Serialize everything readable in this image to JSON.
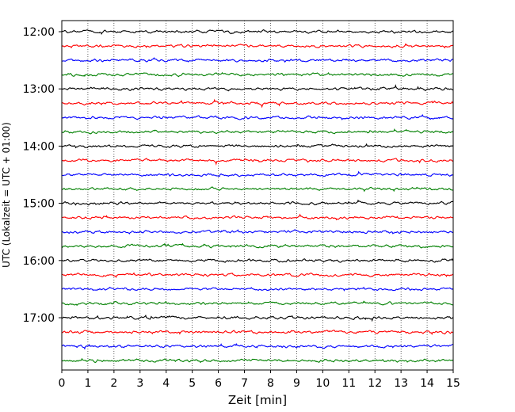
{
  "chart_data": {
    "type": "line",
    "xlabel": "Zeit  [min]",
    "ylabel": "UTC (Lokalzeit = UTC + 01:00)",
    "xlim": [
      0,
      15
    ],
    "x_ticks": [
      "0",
      "1",
      "2",
      "3",
      "4",
      "5",
      "6",
      "7",
      "8",
      "9",
      "10",
      "11",
      "12",
      "13",
      "14",
      "15"
    ],
    "y_ticks": [
      "12:00",
      "13:00",
      "14:00",
      "15:00",
      "16:00",
      "17:00"
    ],
    "grid": "vertical dotted",
    "colors": [
      "#000000",
      "#ff0000",
      "#0000ff",
      "#008000"
    ],
    "rows": [
      {
        "start": "12:00",
        "color": "#000000"
      },
      {
        "start": "12:15",
        "color": "#ff0000"
      },
      {
        "start": "12:30",
        "color": "#0000ff"
      },
      {
        "start": "12:45",
        "color": "#008000"
      },
      {
        "start": "13:00",
        "color": "#000000"
      },
      {
        "start": "13:15",
        "color": "#ff0000"
      },
      {
        "start": "13:30",
        "color": "#0000ff"
      },
      {
        "start": "13:45",
        "color": "#008000"
      },
      {
        "start": "14:00",
        "color": "#000000"
      },
      {
        "start": "14:15",
        "color": "#ff0000"
      },
      {
        "start": "14:30",
        "color": "#0000ff"
      },
      {
        "start": "14:45",
        "color": "#008000"
      },
      {
        "start": "15:00",
        "color": "#000000"
      },
      {
        "start": "15:15",
        "color": "#ff0000"
      },
      {
        "start": "15:30",
        "color": "#0000ff"
      },
      {
        "start": "15:45",
        "color": "#008000"
      },
      {
        "start": "16:00",
        "color": "#000000"
      },
      {
        "start": "16:15",
        "color": "#ff0000"
      },
      {
        "start": "16:30",
        "color": "#0000ff"
      },
      {
        "start": "16:45",
        "color": "#008000"
      },
      {
        "start": "17:00",
        "color": "#000000"
      },
      {
        "start": "17:15",
        "color": "#ff0000"
      },
      {
        "start": "17:30",
        "color": "#0000ff"
      },
      {
        "start": "17:45",
        "color": "#008000"
      }
    ]
  }
}
